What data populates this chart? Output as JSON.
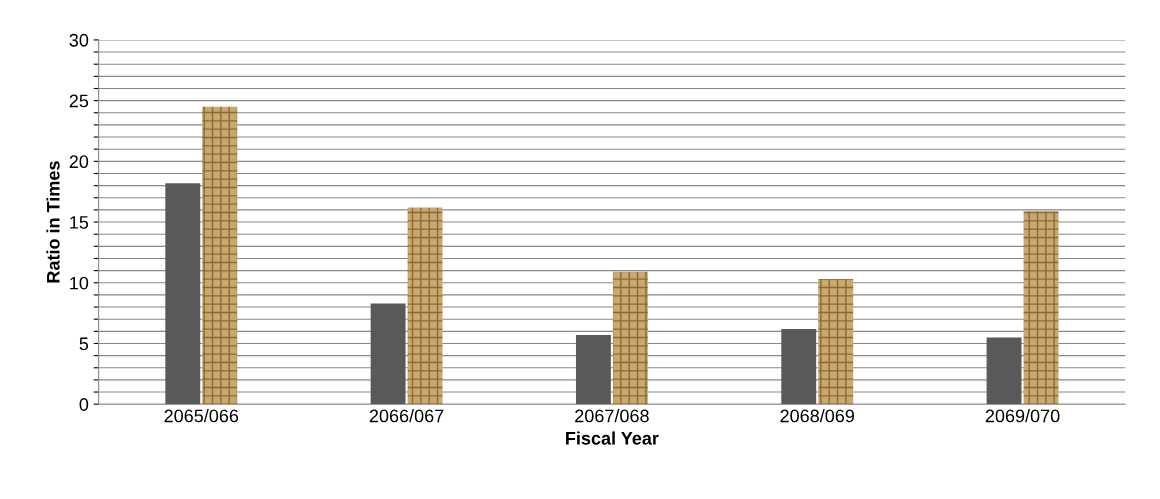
{
  "chart_data": {
    "type": "bar",
    "xlabel": "Fiscal Year",
    "ylabel": "Ratio in Times",
    "categories": [
      "2065/066",
      "2066/067",
      "2067/068",
      "2068/069",
      "2069/070"
    ],
    "series": [
      {
        "color": "#595959",
        "values": [
          18.2,
          8.3,
          5.7,
          6.2,
          5.5
        ]
      },
      {
        "color": "#c9a86c",
        "values": [
          24.5,
          16.2,
          10.9,
          10.3,
          15.9
        ]
      }
    ],
    "ylim": [
      0,
      30
    ],
    "yticks": [
      0,
      {
        "value": 1,
        "label": null
      },
      {
        "value": 2,
        "label": null
      },
      {
        "value": 3,
        "label": null
      },
      {
        "value": 4,
        "label": null
      },
      5,
      {
        "value": 6,
        "label": null
      },
      {
        "value": 7,
        "label": null
      },
      {
        "value": 8,
        "label": null
      },
      {
        "value": 9,
        "label": null
      },
      10,
      {
        "value": 11,
        "label": null
      },
      {
        "value": 12,
        "label": null
      },
      {
        "value": 13,
        "label": null
      },
      {
        "value": 14,
        "label": null
      },
      15,
      {
        "value": 16,
        "label": null
      },
      {
        "value": 17,
        "label": null
      },
      {
        "value": 18,
        "label": null
      },
      {
        "value": 19,
        "label": null
      },
      20,
      {
        "value": 21,
        "label": null
      },
      {
        "value": 22,
        "label": null
      },
      {
        "value": 23,
        "label": null
      },
      {
        "value": 24,
        "label": null
      },
      25,
      {
        "value": 26,
        "label": null
      },
      {
        "value": 27,
        "label": null
      },
      {
        "value": 28,
        "label": null
      },
      {
        "value": 29,
        "label": null
      },
      30
    ],
    "grid": "y"
  }
}
